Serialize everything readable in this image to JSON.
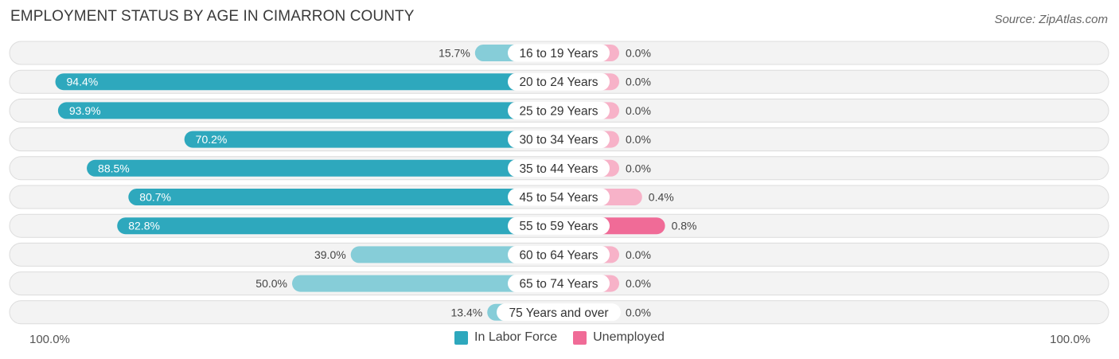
{
  "chart_data": {
    "type": "bar",
    "title": "EMPLOYMENT STATUS BY AGE IN CIMARRON COUNTY",
    "source": "Source: ZipAtlas.com",
    "categories": [
      "16 to 19 Years",
      "20 to 24 Years",
      "25 to 29 Years",
      "30 to 34 Years",
      "35 to 44 Years",
      "45 to 54 Years",
      "55 to 59 Years",
      "60 to 64 Years",
      "65 to 74 Years",
      "75 Years and over"
    ],
    "series": [
      {
        "name": "In Labor Force",
        "color": "#2ea8bd",
        "light_color": "#86cdd8",
        "values": [
          15.7,
          94.4,
          93.9,
          70.2,
          88.5,
          80.7,
          82.8,
          39.0,
          50.0,
          13.4
        ],
        "labels": [
          "15.7%",
          "94.4%",
          "93.9%",
          "70.2%",
          "88.5%",
          "80.7%",
          "82.8%",
          "39.0%",
          "50.0%",
          "13.4%"
        ]
      },
      {
        "name": "Unemployed",
        "color": "#f06b97",
        "light_color": "#f7b2c8",
        "values": [
          0.0,
          0.0,
          0.0,
          0.0,
          0.0,
          0.4,
          0.8,
          0.0,
          0.0,
          0.0
        ],
        "labels": [
          "0.0%",
          "0.0%",
          "0.0%",
          "0.0%",
          "0.0%",
          "0.4%",
          "0.8%",
          "0.0%",
          "0.0%",
          "0.0%"
        ]
      }
    ],
    "axis": {
      "left_label": "100.0%",
      "right_label": "100.0%",
      "range": [
        0,
        100
      ]
    },
    "legend": [
      "In Labor Force",
      "Unemployed"
    ],
    "legend_position": "bottom-center"
  }
}
